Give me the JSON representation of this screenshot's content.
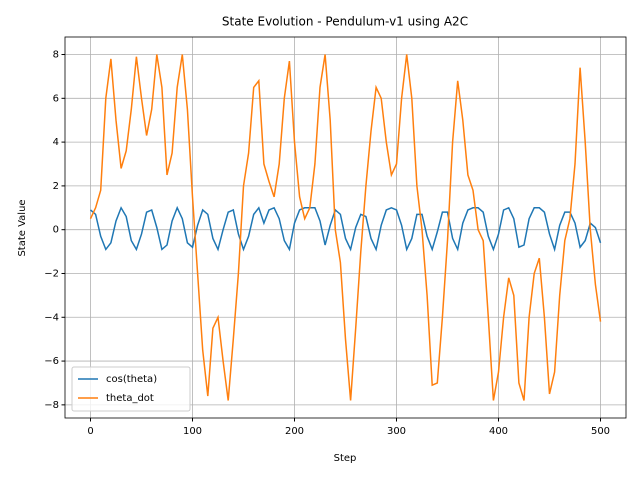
{
  "chart_data": {
    "type": "line",
    "title": "State Evolution - Pendulum-v1 using A2C",
    "x_label": "Step",
    "y_label": "State Value",
    "x": [
      0,
      5,
      10,
      15,
      20,
      25,
      30,
      35,
      40,
      45,
      50,
      55,
      60,
      65,
      70,
      75,
      80,
      85,
      90,
      95,
      100,
      105,
      110,
      115,
      120,
      125,
      130,
      135,
      140,
      145,
      150,
      155,
      160,
      165,
      170,
      175,
      180,
      185,
      190,
      195,
      200,
      205,
      210,
      215,
      220,
      225,
      230,
      235,
      240,
      245,
      250,
      255,
      260,
      265,
      270,
      275,
      280,
      285,
      290,
      295,
      300,
      305,
      310,
      315,
      320,
      325,
      330,
      335,
      340,
      345,
      350,
      355,
      360,
      365,
      370,
      375,
      380,
      385,
      390,
      395,
      400,
      405,
      410,
      415,
      420,
      425,
      430,
      435,
      440,
      445,
      450,
      455,
      460,
      465,
      470,
      475,
      480,
      485,
      490,
      495,
      500
    ],
    "series": [
      {
        "name": "cos(theta)",
        "color": "#1f77b4",
        "values": [
          0.9,
          0.7,
          -0.3,
          -0.9,
          -0.6,
          0.4,
          1.0,
          0.6,
          -0.5,
          -0.9,
          -0.2,
          0.8,
          0.9,
          0.1,
          -0.9,
          -0.7,
          0.4,
          1.0,
          0.5,
          -0.6,
          -0.8,
          0.2,
          0.9,
          0.7,
          -0.4,
          -0.9,
          0,
          0.8,
          0.9,
          -0.2,
          -0.9,
          -0.3,
          0.7,
          1.0,
          0.3,
          0.9,
          1.0,
          0.5,
          -0.5,
          -0.9,
          0.3,
          0.9,
          1.0,
          1.0,
          1.0,
          0.4,
          -0.7,
          0.2,
          0.9,
          0.7,
          -0.4,
          -0.9,
          0.1,
          0.7,
          0.6,
          -0.4,
          -0.9,
          0.2,
          0.9,
          1.0,
          0.9,
          0.2,
          -0.9,
          -0.4,
          0.7,
          0.7,
          -0.3,
          -0.9,
          -0.1,
          0.8,
          0.8,
          -0.4,
          -0.9,
          0.3,
          0.9,
          1.0,
          1.0,
          0.8,
          -0.3,
          -0.9,
          -0.2,
          0.9,
          1.0,
          0.5,
          -0.8,
          -0.7,
          0.5,
          1.0,
          1.0,
          0.8,
          -0.2,
          -0.9,
          0.2,
          0.8,
          0.8,
          0.3,
          -0.8,
          -0.5,
          0.3,
          0.1,
          -0.6
        ]
      },
      {
        "name": "theta_dot",
        "color": "#ff7f0e",
        "values": [
          0.5,
          1.0,
          1.8,
          6,
          7.8,
          5,
          2.8,
          3.6,
          5.5,
          7.9,
          6,
          4.3,
          5.5,
          8,
          6.5,
          2.5,
          3.5,
          6.5,
          8,
          5.5,
          1.5,
          -2,
          -5.5,
          -7.6,
          -4.5,
          -4,
          -6,
          -7.8,
          -5,
          -2,
          2,
          3.5,
          6.5,
          6.8,
          3,
          2.2,
          1.5,
          3,
          6,
          7.7,
          4,
          1.5,
          0.5,
          1,
          3,
          6.5,
          8,
          5,
          0,
          -1.5,
          -5,
          -7.8,
          -4.5,
          -1,
          2,
          4.5,
          6.5,
          6,
          4,
          2.5,
          3,
          6,
          8,
          6,
          2,
          0,
          -3,
          -7.1,
          -7,
          -4,
          -0.5,
          4,
          6.8,
          5,
          2.5,
          1.8,
          0,
          -0.5,
          -4,
          -7.8,
          -6.5,
          -4,
          -2.2,
          -3,
          -7,
          -7.8,
          -4,
          -2,
          -1.3,
          -4,
          -7.5,
          -6.5,
          -3,
          -0.5,
          0.5,
          3,
          7.4,
          4,
          0,
          -2.5,
          -4.2
        ]
      }
    ],
    "xlim": [
      -25,
      525
    ],
    "ylim": [
      -8.6,
      8.8
    ],
    "xticks": [
      0,
      100,
      200,
      300,
      400,
      500
    ],
    "yticks": [
      {
        "value": -8,
        "label": "−8"
      },
      {
        "value": -6,
        "label": "−6"
      },
      {
        "value": -4,
        "label": "−4"
      },
      {
        "value": -2,
        "label": "−2"
      },
      0,
      2,
      4,
      6,
      8
    ],
    "grid": true,
    "legend": "lower left"
  }
}
